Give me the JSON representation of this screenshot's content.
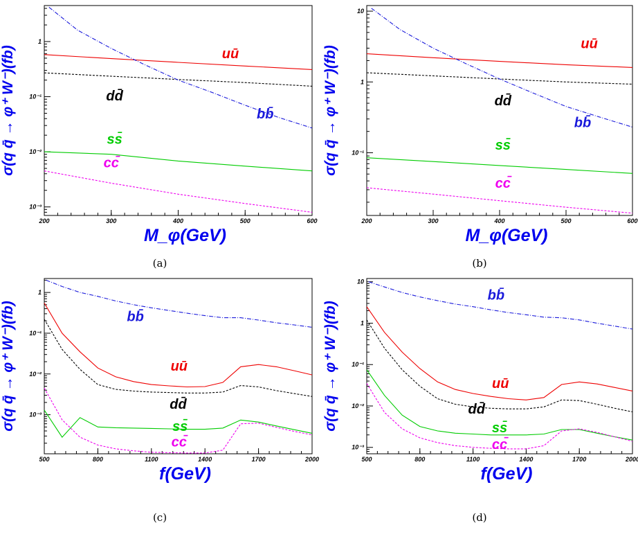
{
  "colors": {
    "uu": "#ee0000",
    "dd": "#000000",
    "bb": "#1a1adb",
    "ss": "#00cc00",
    "cc": "#ee00ee",
    "label": "#0000ee"
  },
  "chart_data": [
    {
      "type": "line",
      "caption": "(a)",
      "xlabel": "M_φ(GeV)",
      "ylabel": "σ(q q̄ → φ⁺ W⁻)(fb)",
      "xlim": [
        200,
        600
      ],
      "ylim": [
        0.0007,
        4.5
      ],
      "yscale": "log",
      "xticks": [
        200,
        300,
        400,
        500,
        600
      ],
      "yticks": [
        {
          "v": 0.001,
          "t": "10⁻³"
        },
        {
          "v": 0.01,
          "t": "10⁻²"
        },
        {
          "v": 0.1,
          "t": "10⁻¹"
        },
        {
          "v": 1,
          "t": "1"
        }
      ],
      "series": [
        {
          "name": "uū",
          "key": "uu",
          "dash": "",
          "x": [
            200,
            300,
            400,
            500,
            600
          ],
          "y": [
            0.58,
            0.49,
            0.42,
            0.36,
            0.31
          ],
          "label_at": [
            478,
            0.5
          ]
        },
        {
          "name": "dd̄",
          "key": "dd",
          "dash": "3,2",
          "x": [
            200,
            300,
            400,
            500,
            600
          ],
          "y": [
            0.27,
            0.235,
            0.205,
            0.18,
            0.155
          ],
          "label_at": [
            305,
            0.085
          ]
        },
        {
          "name": "bb̄",
          "key": "bb",
          "dash": "6,2,1,2",
          "x": [
            207,
            250,
            300,
            350,
            400,
            450,
            500,
            550,
            600
          ],
          "y": [
            4.2,
            1.6,
            0.75,
            0.38,
            0.2,
            0.12,
            0.07,
            0.042,
            0.027
          ],
          "label_at": [
            530,
            0.04
          ]
        },
        {
          "name": "ss̄",
          "key": "ss",
          "dash": "",
          "x": [
            200,
            300,
            400,
            500,
            600
          ],
          "y": [
            0.01,
            0.009,
            0.0068,
            0.0055,
            0.0045
          ],
          "label_at": [
            305,
            0.014
          ]
        },
        {
          "name": "cc̄",
          "key": "cc",
          "dash": "3,2",
          "x": [
            200,
            300,
            400,
            500,
            600
          ],
          "y": [
            0.0045,
            0.0027,
            0.0017,
            0.00115,
            0.0008
          ],
          "label_at": [
            300,
            0.0052
          ]
        }
      ]
    },
    {
      "type": "line",
      "caption": "(b)",
      "xlabel": "M_φ(GeV)",
      "ylabel": "σ(q q̄ → φ⁺ W⁻)(fb)",
      "xlim": [
        200,
        600
      ],
      "ylim": [
        0.013,
        12
      ],
      "yscale": "log",
      "xticks": [
        200,
        300,
        400,
        500,
        600
      ],
      "yticks": [
        {
          "v": 0.1,
          "t": "10⁻¹"
        },
        {
          "v": 1,
          "t": "1"
        },
        {
          "v": 10,
          "t": "10"
        }
      ],
      "series": [
        {
          "name": "uū",
          "key": "uu",
          "dash": "",
          "x": [
            200,
            300,
            400,
            500,
            600
          ],
          "y": [
            2.5,
            2.2,
            1.95,
            1.75,
            1.6
          ],
          "label_at": [
            535,
            3.0
          ]
        },
        {
          "name": "dd̄",
          "key": "dd",
          "dash": "3,2",
          "x": [
            200,
            300,
            400,
            500,
            600
          ],
          "y": [
            1.35,
            1.22,
            1.1,
            1.0,
            0.93
          ],
          "label_at": [
            405,
            0.47
          ]
        },
        {
          "name": "bb̄",
          "key": "bb",
          "dash": "6,2,1,2",
          "x": [
            207,
            250,
            300,
            350,
            400,
            450,
            500,
            550,
            600
          ],
          "y": [
            11,
            5.5,
            3.0,
            1.8,
            1.1,
            0.7,
            0.45,
            0.32,
            0.23
          ],
          "label_at": [
            525,
            0.23
          ]
        },
        {
          "name": "ss̄",
          "key": "ss",
          "dash": "",
          "x": [
            200,
            300,
            400,
            500,
            600
          ],
          "y": [
            0.085,
            0.075,
            0.066,
            0.058,
            0.051
          ],
          "label_at": [
            405,
            0.11
          ]
        },
        {
          "name": "cc̄",
          "key": "cc",
          "dash": "3,2",
          "x": [
            200,
            300,
            400,
            500,
            600
          ],
          "y": [
            0.032,
            0.026,
            0.021,
            0.017,
            0.014
          ],
          "label_at": [
            405,
            0.032
          ]
        }
      ]
    },
    {
      "type": "line",
      "caption": "(c)",
      "xlabel": "f(GeV)",
      "ylabel": "σ(q q̄ → φ⁺ W⁻)(fb)",
      "xlim": [
        500,
        2000
      ],
      "ylim": [
        0.00011,
        2.2
      ],
      "yscale": "log",
      "xticks": [
        500,
        800,
        1100,
        1400,
        1700,
        2000
      ],
      "yticks": [
        {
          "v": 0.001,
          "t": "10⁻³"
        },
        {
          "v": 0.01,
          "t": "10⁻²"
        },
        {
          "v": 0.1,
          "t": "10⁻¹"
        },
        {
          "v": 1,
          "t": "1"
        }
      ],
      "series": [
        {
          "name": "bb̄",
          "key": "bb",
          "dash": "6,2,1,2",
          "x": [
            510,
            600,
            700,
            800,
            900,
            1000,
            1100,
            1200,
            1300,
            1400,
            1500,
            1600,
            1700,
            1800,
            1900,
            2000
          ],
          "y": [
            2.0,
            1.4,
            1.0,
            0.8,
            0.62,
            0.5,
            0.42,
            0.36,
            0.31,
            0.27,
            0.24,
            0.24,
            0.21,
            0.18,
            0.16,
            0.14
          ],
          "label_at": [
            1010,
            0.2
          ]
        },
        {
          "name": "uū",
          "key": "uu",
          "dash": "",
          "x": [
            500,
            600,
            700,
            800,
            900,
            1000,
            1100,
            1200,
            1300,
            1400,
            1500,
            1600,
            1700,
            1800,
            1900,
            2000
          ],
          "y": [
            0.55,
            0.1,
            0.035,
            0.014,
            0.0085,
            0.0065,
            0.0055,
            0.0051,
            0.0048,
            0.0049,
            0.0062,
            0.015,
            0.017,
            0.015,
            0.012,
            0.0095
          ],
          "label_at": [
            1255,
            0.012
          ]
        },
        {
          "name": "dd̄",
          "key": "dd",
          "dash": "3,2",
          "x": [
            500,
            600,
            700,
            800,
            900,
            1000,
            1100,
            1200,
            1300,
            1400,
            1500,
            1600,
            1700,
            1800,
            1900,
            2000
          ],
          "y": [
            0.22,
            0.04,
            0.013,
            0.0055,
            0.0042,
            0.0038,
            0.0036,
            0.0035,
            0.0034,
            0.0034,
            0.0036,
            0.0052,
            0.0048,
            0.0039,
            0.0033,
            0.0028
          ],
          "label_at": [
            1250,
            0.0014
          ]
        },
        {
          "name": "ss̄",
          "key": "ss",
          "dash": "",
          "x": [
            500,
            600,
            700,
            800,
            900,
            1000,
            1100,
            1200,
            1300,
            1400,
            1500,
            1600,
            1700,
            1800,
            1900,
            2000
          ],
          "y": [
            0.0013,
            0.00028,
            0.00085,
            0.0005,
            0.00048,
            0.00047,
            0.00046,
            0.00045,
            0.00044,
            0.00044,
            0.00047,
            0.00074,
            0.00066,
            0.00053,
            0.00043,
            0.00035
          ],
          "label_at": [
            1260,
            0.0004
          ]
        },
        {
          "name": "cc̄",
          "key": "cc",
          "dash": "3,2",
          "x": [
            500,
            600,
            700,
            800,
            900,
            1000,
            1100,
            1200,
            1300,
            1400,
            1500,
            1600,
            1700,
            1800,
            1900,
            2000
          ],
          "y": [
            0.0045,
            0.00075,
            0.00028,
            0.00018,
            0.000145,
            0.00013,
            0.00012,
            0.000117,
            0.000115,
            0.000115,
            0.000135,
            0.0006,
            0.00062,
            0.00049,
            0.00039,
            0.00032
          ],
          "label_at": [
            1255,
            0.000165
          ]
        }
      ]
    },
    {
      "type": "line",
      "caption": "(d)",
      "xlabel": "f(GeV)",
      "ylabel": "σ(q q̄ → φ⁺ W⁻)(fb)",
      "xlim": [
        500,
        2000
      ],
      "ylim": [
        0.0007,
        12
      ],
      "yscale": "log",
      "xticks": [
        500,
        800,
        1100,
        1400,
        1700,
        2000
      ],
      "yticks": [
        {
          "v": 0.001,
          "t": "10⁻³"
        },
        {
          "v": 0.01,
          "t": "10⁻²"
        },
        {
          "v": 0.1,
          "t": "10⁻¹"
        },
        {
          "v": 1,
          "t": "1"
        },
        {
          "v": 10,
          "t": "10"
        }
      ],
      "series": [
        {
          "name": "bb̄",
          "key": "bb",
          "dash": "6,2,1,2",
          "x": [
            510,
            600,
            700,
            800,
            900,
            1000,
            1100,
            1200,
            1300,
            1400,
            1500,
            1600,
            1700,
            1800,
            1900,
            2000
          ],
          "y": [
            10,
            7.5,
            5.5,
            4.3,
            3.5,
            2.9,
            2.5,
            2.1,
            1.8,
            1.6,
            1.4,
            1.35,
            1.2,
            1.0,
            0.85,
            0.72
          ],
          "label_at": [
            1230,
            3.7
          ]
        },
        {
          "name": "uū",
          "key": "uu",
          "dash": "",
          "x": [
            500,
            600,
            700,
            800,
            900,
            1000,
            1100,
            1200,
            1300,
            1400,
            1500,
            1600,
            1700,
            1800,
            1900,
            2000
          ],
          "y": [
            2.5,
            0.6,
            0.2,
            0.08,
            0.038,
            0.025,
            0.02,
            0.017,
            0.015,
            0.014,
            0.016,
            0.033,
            0.038,
            0.034,
            0.028,
            0.023
          ],
          "label_at": [
            1255,
            0.027
          ]
        },
        {
          "name": "dd̄",
          "key": "dd",
          "dash": "3,2",
          "x": [
            500,
            600,
            700,
            800,
            900,
            1000,
            1100,
            1200,
            1300,
            1400,
            1500,
            1600,
            1700,
            1800,
            1900,
            2000
          ],
          "y": [
            1.2,
            0.25,
            0.075,
            0.03,
            0.015,
            0.011,
            0.0095,
            0.0088,
            0.0085,
            0.0085,
            0.0095,
            0.014,
            0.0135,
            0.011,
            0.0088,
            0.0072
          ],
          "label_at": [
            1120,
            0.0065
          ]
        },
        {
          "name": "ss̄",
          "key": "ss",
          "dash": "",
          "x": [
            500,
            600,
            700,
            800,
            900,
            1000,
            1100,
            1200,
            1300,
            1400,
            1500,
            1600,
            1700,
            1800,
            1900,
            2000
          ],
          "y": [
            0.075,
            0.018,
            0.006,
            0.0032,
            0.0025,
            0.0022,
            0.0021,
            0.002,
            0.002,
            0.002,
            0.0021,
            0.0027,
            0.0027,
            0.0022,
            0.0018,
            0.0015
          ],
          "label_at": [
            1250,
            0.0023
          ]
        },
        {
          "name": "cc̄",
          "key": "cc",
          "dash": "3,2",
          "x": [
            500,
            600,
            700,
            800,
            900,
            1000,
            1100,
            1200,
            1300,
            1400,
            1500,
            1600,
            1700,
            1800,
            1900,
            2000
          ],
          "y": [
            0.035,
            0.007,
            0.0028,
            0.0017,
            0.0013,
            0.0011,
            0.001,
            0.00095,
            0.00092,
            0.00092,
            0.0011,
            0.0025,
            0.0028,
            0.0023,
            0.0018,
            0.0014
          ],
          "label_at": [
            1250,
            0.00092
          ]
        }
      ]
    }
  ]
}
